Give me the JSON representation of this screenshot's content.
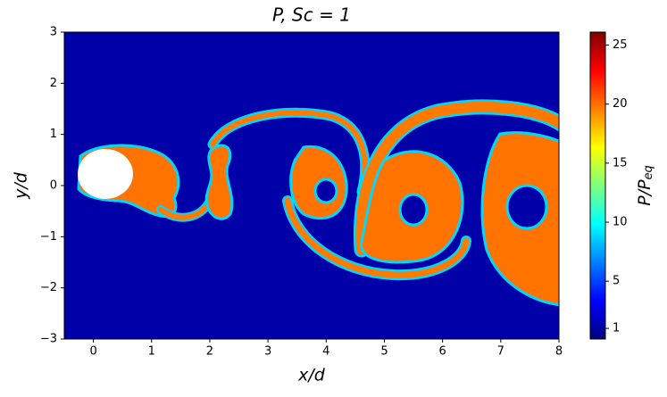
{
  "chart_data": {
    "type": "heatmap",
    "title": "P, Sc = 1",
    "xlabel": "x/d",
    "ylabel": "y/d",
    "xlim": [
      -0.5,
      8
    ],
    "ylim": [
      -3,
      3
    ],
    "xticks": [
      0,
      1,
      2,
      3,
      4,
      5,
      6,
      7,
      8
    ],
    "yticks": [
      {
        "value": -3,
        "label": "−3"
      },
      {
        "value": -2,
        "label": "−2"
      },
      {
        "value": -1,
        "label": "−1"
      },
      0,
      1,
      2,
      3
    ],
    "colormap": "jet",
    "colorbar": {
      "label": "P/P",
      "label_subscript": "eq",
      "lim": [
        0.1,
        26.1
      ],
      "ticks": [
        1,
        5,
        10,
        15,
        20,
        25
      ]
    }
  }
}
